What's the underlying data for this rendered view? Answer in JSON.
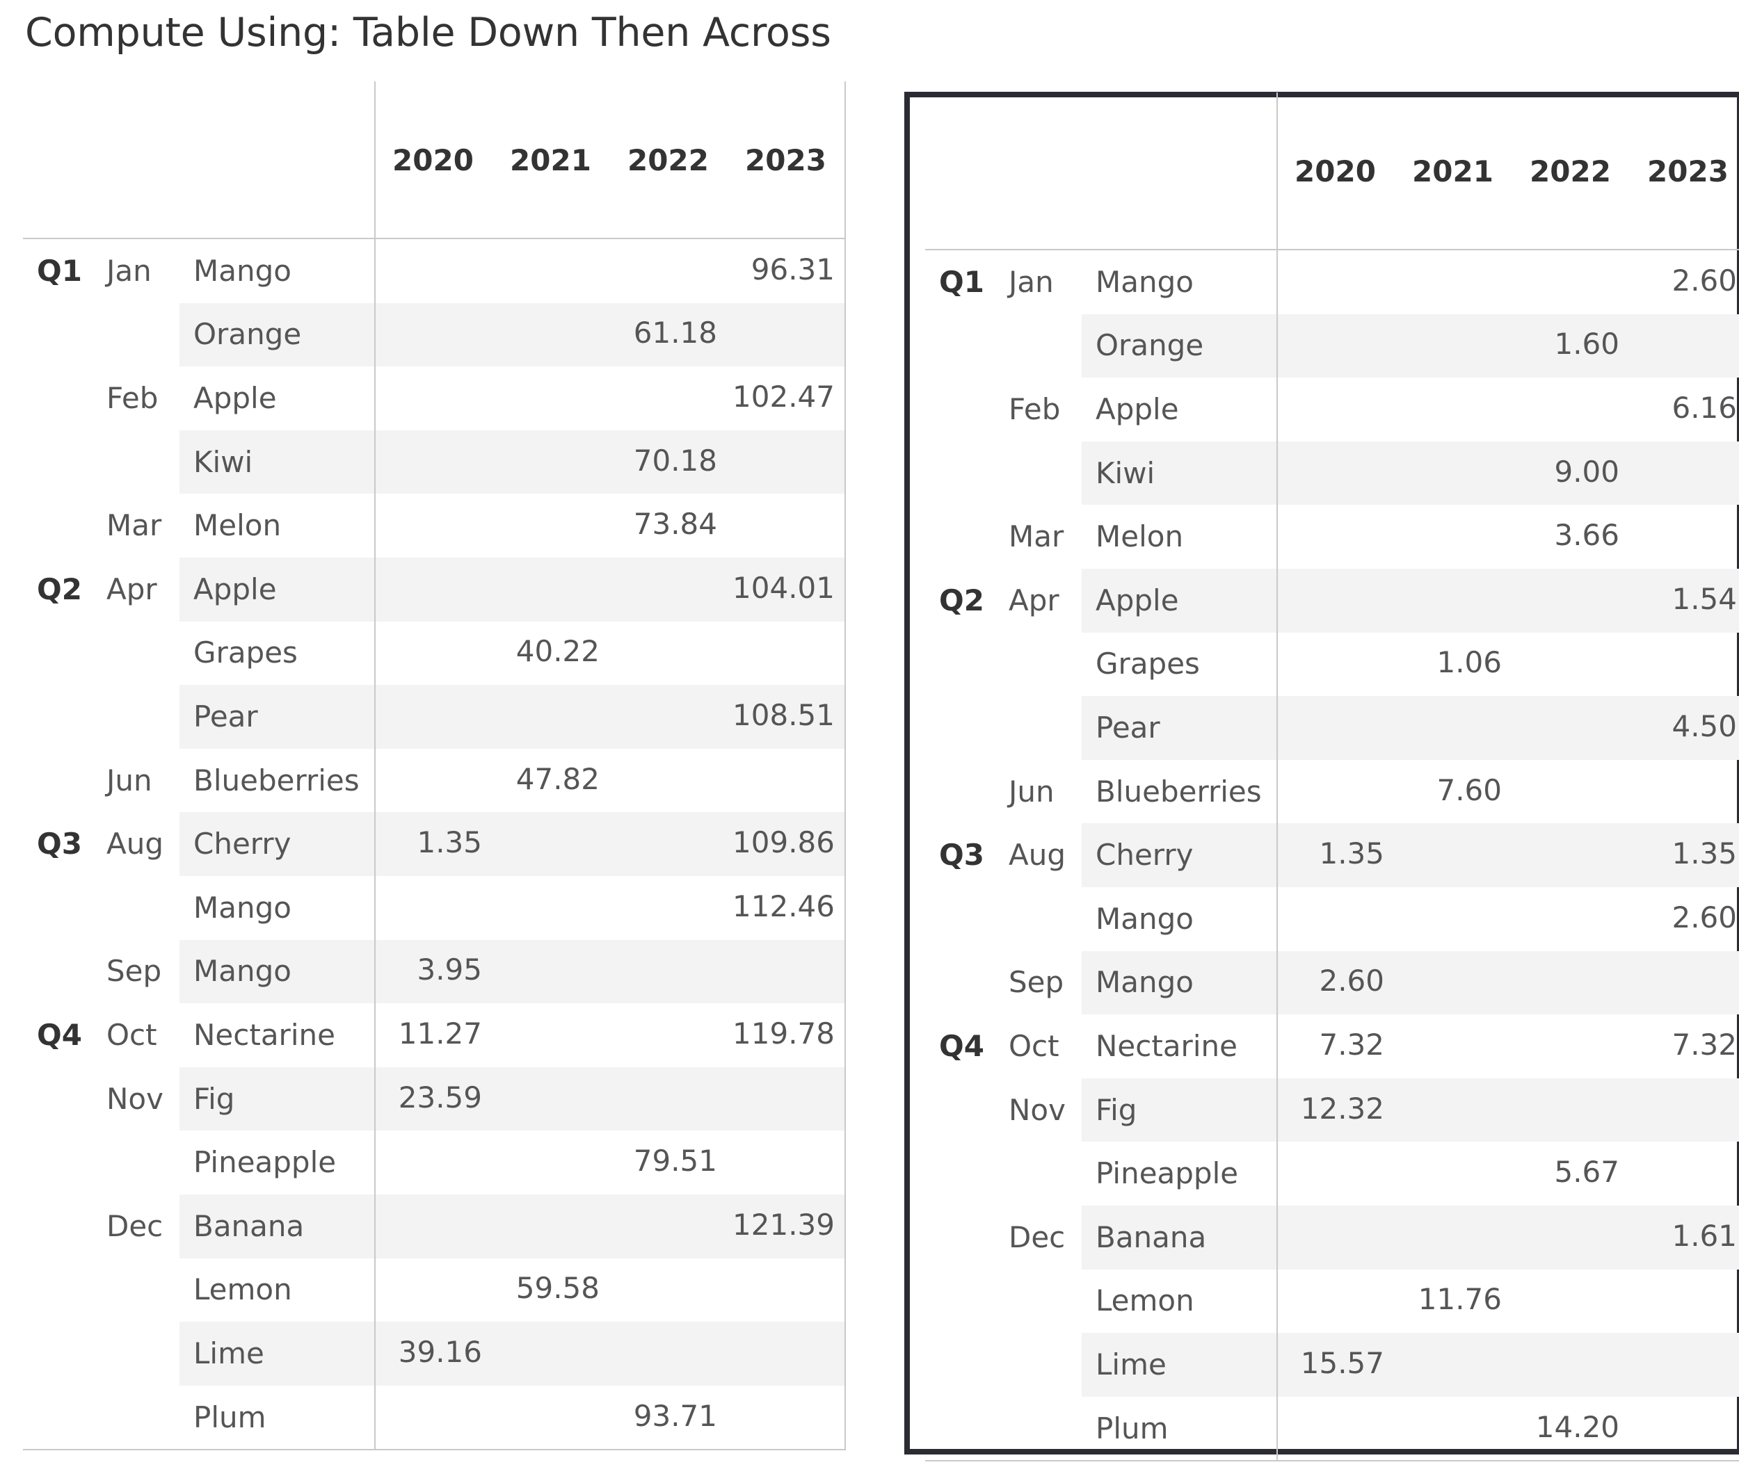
{
  "title": "Compute Using: Table Down Then Across",
  "columns": [
    "2020",
    "2021",
    "2022",
    "2023"
  ],
  "rows": [
    {
      "quarter": "Q1",
      "month": "Jan",
      "fruit": "Mango"
    },
    {
      "quarter": "",
      "month": "",
      "fruit": "Orange"
    },
    {
      "quarter": "",
      "month": "Feb",
      "fruit": "Apple"
    },
    {
      "quarter": "",
      "month": "",
      "fruit": "Kiwi"
    },
    {
      "quarter": "",
      "month": "Mar",
      "fruit": "Melon"
    },
    {
      "quarter": "Q2",
      "month": "Apr",
      "fruit": "Apple"
    },
    {
      "quarter": "",
      "month": "",
      "fruit": "Grapes"
    },
    {
      "quarter": "",
      "month": "",
      "fruit": "Pear"
    },
    {
      "quarter": "",
      "month": "Jun",
      "fruit": "Blueberries"
    },
    {
      "quarter": "Q3",
      "month": "Aug",
      "fruit": "Cherry"
    },
    {
      "quarter": "",
      "month": "",
      "fruit": "Mango"
    },
    {
      "quarter": "",
      "month": "Sep",
      "fruit": "Mango"
    },
    {
      "quarter": "Q4",
      "month": "Oct",
      "fruit": "Nectarine"
    },
    {
      "quarter": "",
      "month": "Nov",
      "fruit": "Fig"
    },
    {
      "quarter": "",
      "month": "",
      "fruit": "Pineapple"
    },
    {
      "quarter": "",
      "month": "Dec",
      "fruit": "Banana"
    },
    {
      "quarter": "",
      "month": "",
      "fruit": "Lemon"
    },
    {
      "quarter": "",
      "month": "",
      "fruit": "Lime"
    },
    {
      "quarter": "",
      "month": "",
      "fruit": "Plum"
    }
  ],
  "tables": [
    {
      "id": "left",
      "values": [
        [
          "",
          "",
          "",
          "96.31"
        ],
        [
          "",
          "",
          "61.18",
          ""
        ],
        [
          "",
          "",
          "",
          "102.47"
        ],
        [
          "",
          "",
          "70.18",
          ""
        ],
        [
          "",
          "",
          "73.84",
          ""
        ],
        [
          "",
          "",
          "",
          "104.01"
        ],
        [
          "",
          "40.22",
          "",
          ""
        ],
        [
          "",
          "",
          "",
          "108.51"
        ],
        [
          "",
          "47.82",
          "",
          ""
        ],
        [
          "1.35",
          "",
          "",
          "109.86"
        ],
        [
          "",
          "",
          "",
          "112.46"
        ],
        [
          "3.95",
          "",
          "",
          ""
        ],
        [
          "11.27",
          "",
          "",
          "119.78"
        ],
        [
          "23.59",
          "",
          "",
          ""
        ],
        [
          "",
          "",
          "79.51",
          ""
        ],
        [
          "",
          "",
          "",
          "121.39"
        ],
        [
          "",
          "59.58",
          "",
          ""
        ],
        [
          "39.16",
          "",
          "",
          ""
        ],
        [
          "",
          "",
          "93.71",
          ""
        ]
      ]
    },
    {
      "id": "right",
      "values": [
        [
          "",
          "",
          "",
          "2.60"
        ],
        [
          "",
          "",
          "1.60",
          ""
        ],
        [
          "",
          "",
          "",
          "6.16"
        ],
        [
          "",
          "",
          "9.00",
          ""
        ],
        [
          "",
          "",
          "3.66",
          ""
        ],
        [
          "",
          "",
          "",
          "1.54"
        ],
        [
          "",
          "1.06",
          "",
          ""
        ],
        [
          "",
          "",
          "",
          "4.50"
        ],
        [
          "",
          "7.60",
          "",
          ""
        ],
        [
          "1.35",
          "",
          "",
          "1.35"
        ],
        [
          "",
          "",
          "",
          "2.60"
        ],
        [
          "2.60",
          "",
          "",
          ""
        ],
        [
          "7.32",
          "",
          "",
          "7.32"
        ],
        [
          "12.32",
          "",
          "",
          ""
        ],
        [
          "",
          "",
          "5.67",
          ""
        ],
        [
          "",
          "",
          "",
          "1.61"
        ],
        [
          "",
          "11.76",
          "",
          ""
        ],
        [
          "15.57",
          "",
          "",
          ""
        ],
        [
          "",
          "",
          "14.20",
          ""
        ]
      ]
    }
  ]
}
